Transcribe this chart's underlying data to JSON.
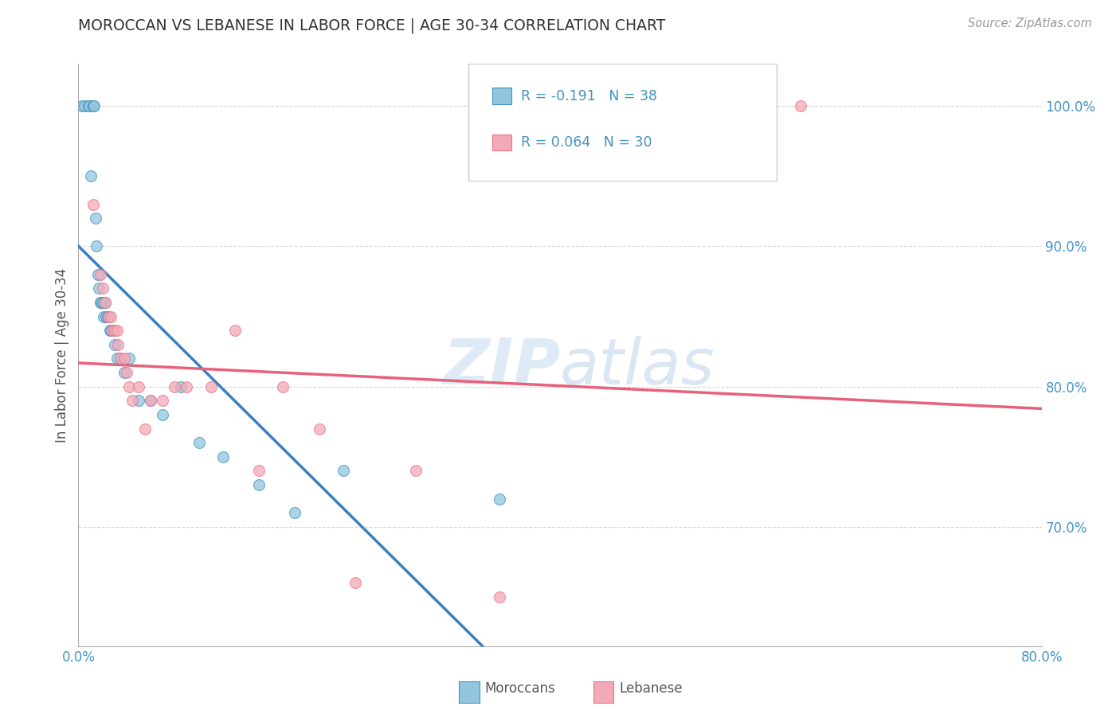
{
  "title": "MOROCCAN VS LEBANESE IN LABOR FORCE | AGE 30-34 CORRELATION CHART",
  "source": "Source: ZipAtlas.com",
  "ylabel": "In Labor Force | Age 30-34",
  "yticks_labels": [
    "70.0%",
    "80.0%",
    "90.0%",
    "100.0%"
  ],
  "ytick_vals": [
    0.7,
    0.8,
    0.9,
    1.0
  ],
  "xlim": [
    0.0,
    0.8
  ],
  "ylim": [
    0.615,
    1.03
  ],
  "watermark_zip": "ZIP",
  "watermark_atlas": "atlas",
  "legend_r_moroccan": "R = -0.191",
  "legend_n_moroccan": "N = 38",
  "legend_r_lebanese": "R = 0.064",
  "legend_n_lebanese": "N = 30",
  "moroccan_color": "#92c5de",
  "lebanese_color": "#f4a9b8",
  "moroccan_edge_color": "#4393c3",
  "lebanese_edge_color": "#e8758a",
  "moroccan_line_color": "#3a7fc1",
  "lebanese_line_color": "#e8607a",
  "background_color": "#ffffff",
  "grid_color": "#cccccc",
  "title_color": "#333333",
  "axis_color": "#4393c3",
  "moroccan_x": [
    0.003,
    0.005,
    0.008,
    0.009,
    0.01,
    0.012,
    0.012,
    0.013,
    0.014,
    0.015,
    0.016,
    0.017,
    0.018,
    0.019,
    0.02,
    0.021,
    0.022,
    0.023,
    0.024,
    0.025,
    0.026,
    0.027,
    0.028,
    0.03,
    0.032,
    0.035,
    0.038,
    0.042,
    0.05,
    0.06,
    0.07,
    0.085,
    0.1,
    0.12,
    0.15,
    0.18,
    0.22,
    0.35
  ],
  "moroccan_y": [
    1.0,
    1.0,
    1.0,
    1.0,
    0.95,
    1.0,
    1.0,
    1.0,
    0.92,
    0.9,
    0.88,
    0.87,
    0.86,
    0.86,
    0.86,
    0.85,
    0.86,
    0.85,
    0.85,
    0.85,
    0.84,
    0.84,
    0.84,
    0.83,
    0.82,
    0.82,
    0.81,
    0.82,
    0.79,
    0.79,
    0.78,
    0.8,
    0.76,
    0.75,
    0.73,
    0.71,
    0.74,
    0.72
  ],
  "lebanese_x": [
    0.012,
    0.018,
    0.02,
    0.022,
    0.025,
    0.027,
    0.028,
    0.03,
    0.032,
    0.033,
    0.035,
    0.038,
    0.04,
    0.042,
    0.045,
    0.05,
    0.055,
    0.06,
    0.07,
    0.08,
    0.09,
    0.11,
    0.13,
    0.15,
    0.17,
    0.2,
    0.23,
    0.28,
    0.35,
    0.6
  ],
  "lebanese_y": [
    0.93,
    0.88,
    0.87,
    0.86,
    0.85,
    0.85,
    0.84,
    0.84,
    0.84,
    0.83,
    0.82,
    0.82,
    0.81,
    0.8,
    0.79,
    0.8,
    0.77,
    0.79,
    0.79,
    0.8,
    0.8,
    0.8,
    0.84,
    0.74,
    0.8,
    0.77,
    0.66,
    0.74,
    0.65,
    1.0
  ]
}
